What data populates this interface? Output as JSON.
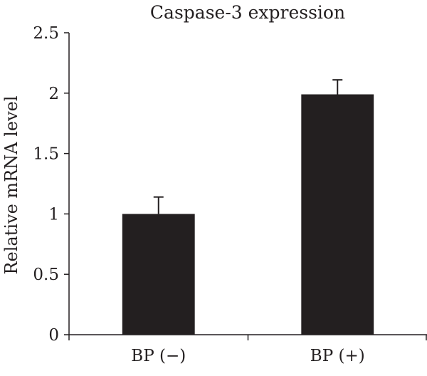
{
  "chart_data": {
    "type": "bar",
    "title": "Caspase-3 expression",
    "xlabel": "",
    "ylabel": "Relative mRNA level",
    "categories": [
      "BP (−)",
      "BP (+)"
    ],
    "values": [
      1.0,
      1.99
    ],
    "error_bars": [
      0.14,
      0.12
    ],
    "ylim": [
      0,
      2.5
    ],
    "yticks": [
      "0",
      "0.5",
      "1",
      "1.5",
      "2",
      "2.5"
    ],
    "grid": false,
    "legend": "none",
    "bar_color": "#231f20"
  }
}
